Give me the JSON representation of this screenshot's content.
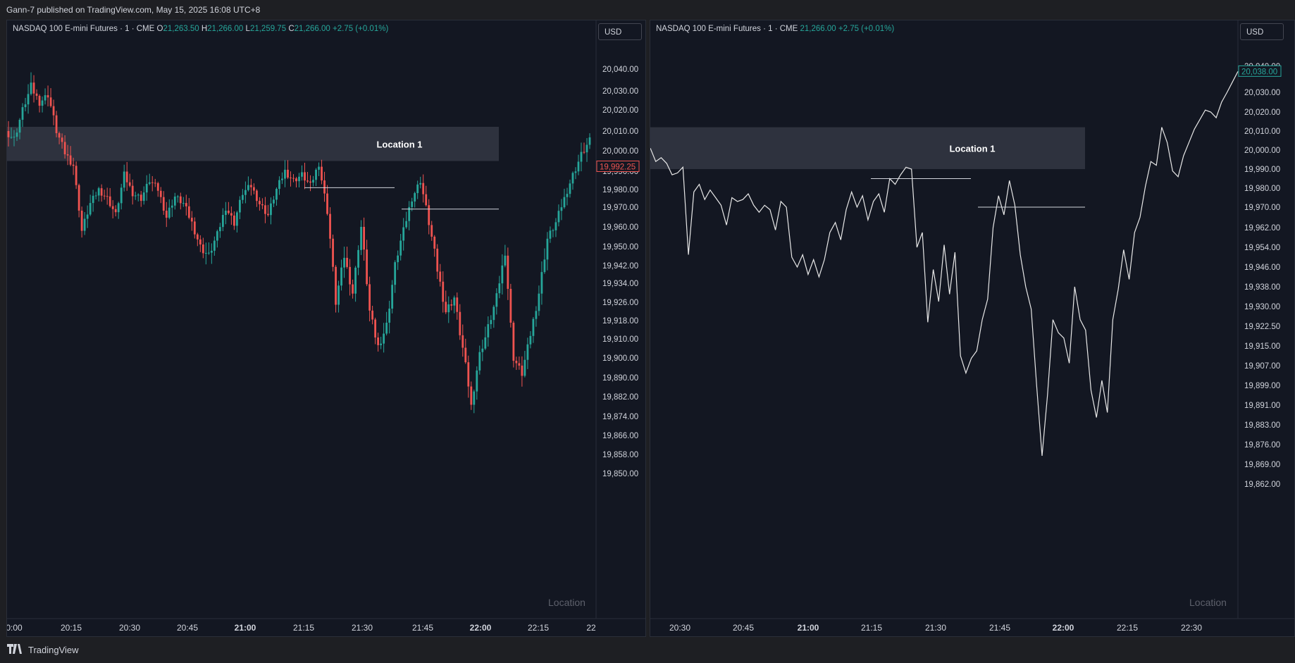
{
  "header": {
    "publish_text": "Gann-7 published on TradingView.com, May 15, 2025 16:08 UTC+8"
  },
  "footer": {
    "brand": "TradingView"
  },
  "colors": {
    "background": "#131722",
    "up": "#26a69a",
    "down": "#ef5350",
    "line": "#e8e8e8",
    "zone": "#2e323e",
    "grid": "#1b1f2b"
  },
  "icons": [
    "tradingview-logo-icon"
  ],
  "left_panel": {
    "legend": {
      "title": "NASDAQ 100 E-mini Futures · 1 · CME",
      "o_label": "O",
      "o_value": "21,263.50",
      "h_label": "H",
      "h_value": "21,266.00",
      "l_label": "L",
      "l_value": "21,259.75",
      "c_label": "C",
      "c_value": "21,266.00",
      "change": "+2.75 (+0.01%)"
    },
    "currency": "USD",
    "zone_label": "Location 1",
    "watermark": "Location",
    "last_price_label": "19,992.25"
  },
  "right_panel": {
    "legend": {
      "title": "NASDAQ 100 E-mini Futures · 1 · CME",
      "close_value": "21,266.00",
      "change": "+2.75 (+0.01%)"
    },
    "currency": "USD",
    "zone_label": "Location 1",
    "watermark": "Location",
    "last_price_label": "20,038.00"
  },
  "chart_data": [
    {
      "type": "candlestick",
      "title": "NASDAQ 100 E-mini Futures · 1 · CME",
      "x_ticks": [
        "0:00",
        "20:15",
        "20:30",
        "20:45",
        "21:00",
        "21:15",
        "21:30",
        "21:45",
        "22:00",
        "22:15",
        "22"
      ],
      "y_ticks": [
        "20,040.00",
        "20,030.00",
        "20,020.00",
        "20,010.00",
        "20,000.00",
        "19,990.00",
        "19,980.00",
        "19,970.00",
        "19,960.00",
        "19,950.00",
        "19,942.00",
        "19,934.00",
        "19,926.00",
        "19,918.00",
        "19,910.00",
        "19,900.00",
        "19,890.00",
        "19,882.00",
        "19,874.00",
        "19,866.00",
        "19,858.00",
        "19,850.00"
      ],
      "last_price": 19992.25,
      "zone": {
        "label": "Location 1",
        "range": [
          19995,
          20012
        ]
      },
      "horizontal_levels": [
        19981,
        19969
      ],
      "close_path": [
        20010,
        20006,
        20020,
        20032,
        20024,
        20028,
        20010,
        19999,
        19993,
        19958,
        19972,
        19980,
        19975,
        19966,
        19988,
        19978,
        19975,
        19985,
        19980,
        19965,
        19976,
        19972,
        19962,
        19950,
        19946,
        19956,
        19970,
        19962,
        19978,
        19982,
        19972,
        19966,
        19980,
        19990,
        19985,
        19988,
        19982,
        19994,
        19968,
        19926,
        19946,
        19930,
        19960,
        19922,
        19906,
        19916,
        19942,
        19958,
        19975,
        19985,
        19962,
        19940,
        19922,
        19928,
        19905,
        19878,
        19902,
        19915,
        19928,
        19948,
        19900,
        19892,
        19912,
        19930,
        19954,
        19962,
        19975,
        19988,
        19998,
        20005
      ],
      "range": {
        "low": 19858.5,
        "high": 20038
      }
    },
    {
      "type": "line",
      "title": "NASDAQ 100 E-mini Futures · 1 · CME",
      "x_ticks": [
        "20:30",
        "20:45",
        "21:00",
        "21:15",
        "21:30",
        "21:45",
        "22:00",
        "22:15",
        "22:30"
      ],
      "y_ticks": [
        "20,040.00",
        "20,030.00",
        "20,020.00",
        "20,010.00",
        "20,000.00",
        "19,990.00",
        "19,980.00",
        "19,970.00",
        "19,962.00",
        "19,954.00",
        "19,946.00",
        "19,938.00",
        "19,930.00",
        "19,922.50",
        "19,915.00",
        "19,907.00",
        "19,899.00",
        "19,891.00",
        "19,883.00",
        "19,876.00",
        "19,869.00",
        "19,862.00"
      ],
      "last_price": 20038,
      "zone": {
        "label": "Location 1",
        "range": [
          19990,
          20012
        ]
      },
      "horizontal_levels": [
        19985,
        19970
      ],
      "close_path": [
        20001,
        19994,
        19996,
        19993,
        19987,
        19988,
        19991,
        19951,
        19978,
        19982,
        19974,
        19979,
        19975,
        19971,
        19963,
        19975,
        19973,
        19974,
        19977,
        19971,
        19968,
        19971,
        19969,
        19961,
        19973,
        19970,
        19950,
        19946,
        19951,
        19943,
        19949,
        19942,
        19949,
        19960,
        19964,
        19957,
        19969,
        19978,
        19970,
        19976,
        19965,
        19973,
        19977,
        19968,
        19985,
        19982,
        19987,
        19991,
        19990,
        19954,
        19960,
        19924,
        19945,
        19932,
        19955,
        19935,
        19952,
        19911,
        19904,
        19910,
        19913,
        19925,
        19933,
        19962,
        19976,
        19967,
        19984,
        19971,
        19951,
        19938,
        19929,
        19899,
        19872,
        19895,
        19925,
        19920,
        19918,
        19908,
        19938,
        19925,
        19921,
        19897,
        19886,
        19901,
        19888,
        19925,
        19937,
        19953,
        19941,
        19960,
        19966,
        19981,
        19994,
        19992,
        20012,
        20004,
        19989,
        19986,
        19997,
        20004,
        20011,
        20016,
        20021,
        20020,
        20017,
        20025,
        20030,
        20034,
        20038
      ],
      "range": {
        "low": 19862,
        "high": 20052
      }
    }
  ]
}
